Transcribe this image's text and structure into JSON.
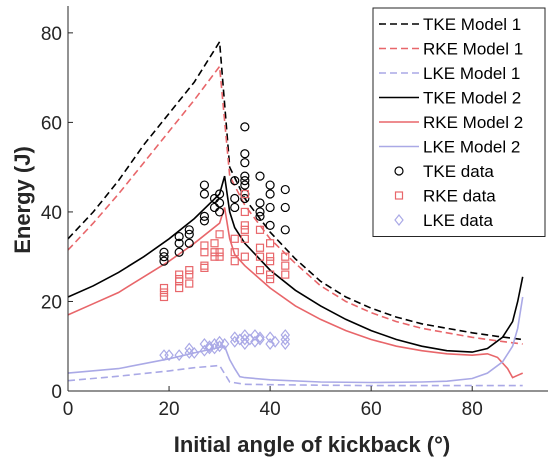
{
  "chart_data": {
    "type": "line",
    "xlabel": "Initial angle of kickback (°)",
    "ylabel": "Energy (J)",
    "xlim": [
      0,
      95
    ],
    "ylim": [
      0,
      86
    ],
    "xticks": [
      0,
      20,
      40,
      60,
      80
    ],
    "yticks": [
      0,
      20,
      40,
      60,
      80
    ],
    "grid": false,
    "legend": {
      "placement": "top-right",
      "entries": [
        "TKE Model 1",
        "RKE Model 1",
        "LKE Model 1",
        "TKE Model 2",
        "RKE Model 2",
        "LKE Model 2",
        "TKE data",
        "RKE data",
        "LKE data"
      ]
    },
    "colors": {
      "black": "#000000",
      "red": "#e8666a",
      "blue": "#aaa9e6"
    },
    "series": [
      {
        "name": "TKE Model 1",
        "kind": "line",
        "dash": true,
        "color": "#000000",
        "x": [
          0,
          5,
          10,
          15,
          20,
          25,
          30,
          32,
          35,
          40,
          45,
          50,
          55,
          60,
          65,
          70,
          75,
          80,
          85,
          90
        ],
        "y": [
          34,
          40,
          47,
          55,
          62,
          69,
          78,
          50,
          43,
          35.5,
          29.5,
          24.5,
          21,
          18.5,
          16.5,
          15,
          14,
          13,
          12.2,
          11.5
        ]
      },
      {
        "name": "RKE Model 1",
        "kind": "line",
        "dash": true,
        "color": "#e8666a",
        "x": [
          0,
          5,
          10,
          15,
          20,
          25,
          30,
          32,
          35,
          40,
          45,
          50,
          55,
          60,
          65,
          70,
          75,
          80,
          85,
          90
        ],
        "y": [
          31.5,
          37.5,
          44,
          51,
          58,
          65,
          72.5,
          48,
          41.5,
          34,
          28.5,
          23.5,
          20,
          17.5,
          15.5,
          14,
          13,
          12,
          11.2,
          10.5
        ]
      },
      {
        "name": "LKE Model 1",
        "kind": "line",
        "dash": true,
        "color": "#aaa9e6",
        "x": [
          0,
          10,
          20,
          25,
          30,
          32,
          35,
          40,
          50,
          60,
          70,
          80,
          85,
          90
        ],
        "y": [
          2.3,
          3.3,
          4.5,
          5.2,
          5.7,
          2,
          1.5,
          1.4,
          1.3,
          1.2,
          1.2,
          1.2,
          1.2,
          1.2
        ]
      },
      {
        "name": "TKE Model 2",
        "kind": "line",
        "dash": false,
        "color": "#000000",
        "x": [
          0,
          5,
          10,
          15,
          20,
          25,
          30,
          31,
          32,
          33,
          35,
          40,
          45,
          50,
          55,
          60,
          65,
          70,
          75,
          80,
          83,
          86,
          88,
          89,
          90
        ],
        "y": [
          21,
          23.5,
          26.5,
          30,
          34,
          38.5,
          44,
          48,
          40,
          36.5,
          33,
          27,
          22.5,
          19,
          16,
          13.5,
          11.5,
          10,
          9,
          8.7,
          9.5,
          12,
          15.5,
          20,
          25.5
        ]
      },
      {
        "name": "RKE Model 2",
        "kind": "line",
        "dash": false,
        "color": "#e8666a",
        "x": [
          0,
          5,
          10,
          15,
          20,
          25,
          30,
          31,
          32,
          33,
          35,
          40,
          45,
          50,
          55,
          60,
          65,
          70,
          75,
          80,
          83,
          85,
          87,
          88,
          89,
          90
        ],
        "y": [
          17,
          19.5,
          22,
          25.5,
          29,
          33,
          37.5,
          41,
          34,
          30.5,
          28,
          23,
          19,
          16,
          13.5,
          11.5,
          10,
          9,
          8.3,
          8,
          8.3,
          7.5,
          5,
          3,
          3.5,
          4
        ]
      },
      {
        "name": "LKE Model 2",
        "kind": "line",
        "dash": false,
        "color": "#aaa9e6",
        "x": [
          0,
          10,
          20,
          25,
          29,
          31,
          32,
          33,
          34,
          35,
          40,
          50,
          60,
          70,
          75,
          80,
          83,
          86,
          88,
          89,
          90
        ],
        "y": [
          4,
          5,
          7.2,
          8.5,
          9.5,
          10,
          7,
          5,
          3.2,
          3,
          2.5,
          2,
          1.9,
          2,
          2.2,
          2.8,
          4,
          6.5,
          10,
          14,
          21
        ]
      },
      {
        "name": "TKE data",
        "kind": "scatter",
        "marker": "circle",
        "color": "#000000",
        "x": [
          19,
          19,
          19,
          22,
          22,
          22,
          24,
          24,
          24,
          27,
          27,
          27,
          27,
          29,
          29,
          30,
          30,
          30,
          33,
          33,
          33,
          35,
          35,
          35,
          35,
          35,
          35,
          35,
          35,
          38,
          38,
          38,
          38,
          40,
          40,
          40,
          40,
          43,
          43,
          43
        ],
        "y": [
          29,
          30,
          31,
          31,
          33,
          34.5,
          33,
          35,
          36,
          38,
          39,
          44,
          46,
          41,
          43,
          40,
          42,
          44,
          41,
          43,
          47,
          43,
          44,
          46,
          47,
          48,
          51,
          53,
          59,
          39,
          40,
          42,
          48,
          37,
          41,
          44,
          46,
          36,
          41,
          45
        ]
      },
      {
        "name": "RKE data",
        "kind": "scatter",
        "marker": "square",
        "color": "#e8666a",
        "x": [
          19,
          19,
          19,
          22,
          22,
          22,
          22,
          24,
          24,
          24,
          27,
          27,
          27,
          27,
          29,
          29,
          29,
          30,
          30,
          30,
          33,
          33,
          33,
          35,
          35,
          35,
          35,
          35,
          35,
          38,
          38,
          38,
          38,
          40,
          40,
          40,
          40,
          40,
          43,
          43,
          43
        ],
        "y": [
          21,
          22,
          23,
          23,
          24.5,
          25,
          26,
          24,
          26,
          27,
          27.5,
          28,
          31,
          32.5,
          30,
          31,
          33,
          30,
          31,
          35,
          29,
          31,
          34,
          30,
          34,
          36,
          37,
          40,
          44,
          27,
          30,
          32,
          36,
          25,
          26,
          29,
          30,
          33,
          26,
          28,
          30
        ]
      },
      {
        "name": "LKE data",
        "kind": "scatter",
        "marker": "diamond",
        "color": "#aaa9e6",
        "x": [
          19,
          20,
          22,
          24,
          24,
          25,
          27,
          27,
          28,
          28,
          29,
          29,
          30,
          30,
          31,
          33,
          33,
          34,
          35,
          35,
          35,
          36,
          37,
          37,
          38,
          38,
          40,
          40,
          41,
          43,
          43,
          43
        ],
        "y": [
          8,
          8,
          8,
          8.5,
          9.5,
          8.5,
          9,
          10.5,
          9.5,
          10,
          9.5,
          10.5,
          10,
          11,
          10.5,
          11,
          12,
          11.5,
          10.5,
          11.5,
          12.5,
          11.5,
          11,
          12.5,
          11.5,
          12,
          10.5,
          12,
          11,
          10.5,
          11.5,
          12.5
        ]
      }
    ]
  }
}
